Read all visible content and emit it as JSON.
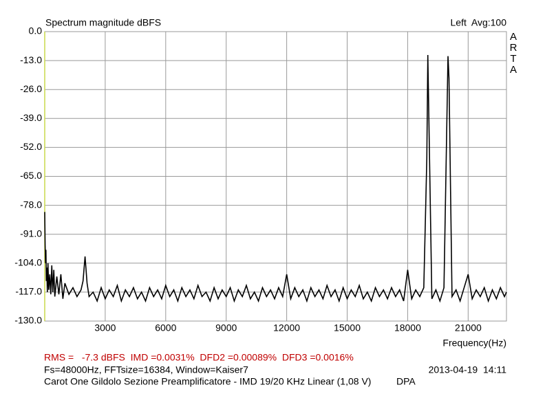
{
  "chart_data": {
    "type": "line",
    "title": "Spectrum magnitude dBFS",
    "channel_label": "Left  Avg:100",
    "brand": "ARTA",
    "x_label": "Frequency(Hz)",
    "measurements": "RMS =   -7.3 dBFS  IMD =0.0031%  DFD2 =0.00089%  DFD3 =0.0016%",
    "settings": "Fs=48000Hz, FFTsize=16384, Window=Kaiser7",
    "timestamp": "2013-04-19  14:11",
    "description": "Carot One Gildolo Sezione Preamplificatore - IMD 19/20 KHz Linear (1,08 V)",
    "author": "DPA",
    "grid": true,
    "xlim": [
      0,
      22900
    ],
    "xticks": [
      3000,
      6000,
      9000,
      12000,
      15000,
      18000,
      21000
    ],
    "ylim": [
      -130,
      0
    ],
    "yticks": [
      {
        "value": 0,
        "label": "0.0"
      },
      {
        "value": -13,
        "label": "-13.0"
      },
      {
        "value": -26,
        "label": "-26.0"
      },
      {
        "value": -39,
        "label": "-39.0"
      },
      {
        "value": -52,
        "label": "-52.0"
      },
      {
        "value": -65,
        "label": "-65.0"
      },
      {
        "value": -78,
        "label": "-78.0"
      },
      {
        "value": -91,
        "label": "-91.0"
      },
      {
        "value": -104,
        "label": "-104.0"
      },
      {
        "value": -117,
        "label": "-117.0"
      },
      {
        "value": -130,
        "label": "-130.0"
      }
    ],
    "x": [
      0,
      20,
      40,
      60,
      80,
      100,
      130,
      160,
      200,
      250,
      300,
      350,
      400,
      450,
      500,
      600,
      700,
      800,
      900,
      1000,
      1200,
      1400,
      1600,
      1800,
      1900,
      2000,
      2100,
      2200,
      2400,
      2600,
      2800,
      3000,
      3200,
      3400,
      3600,
      3800,
      4000,
      4200,
      4400,
      4600,
      4800,
      5000,
      5200,
      5400,
      5600,
      5800,
      6000,
      6200,
      6400,
      6600,
      6800,
      7000,
      7200,
      7400,
      7600,
      7800,
      8000,
      8200,
      8400,
      8600,
      8800,
      9000,
      9200,
      9400,
      9600,
      9800,
      10000,
      10200,
      10400,
      10600,
      10800,
      11000,
      11200,
      11400,
      11600,
      11800,
      12000,
      12200,
      12400,
      12600,
      12800,
      13000,
      13200,
      13400,
      13600,
      13800,
      14000,
      14200,
      14400,
      14600,
      14800,
      15000,
      15200,
      15400,
      15600,
      15800,
      16000,
      16200,
      16400,
      16600,
      16800,
      17000,
      17200,
      17400,
      17600,
      17800,
      18000,
      18200,
      18400,
      18600,
      18800,
      18950,
      19000,
      19200,
      19400,
      19600,
      19800,
      20000,
      20050,
      20200,
      20400,
      20600,
      20800,
      21000,
      21200,
      21400,
      21600,
      21800,
      22000,
      22200,
      22400,
      22600,
      22800,
      22900
    ],
    "series": [
      {
        "color": "#000000",
        "values": [
          -81,
          -96,
          -104,
          -98,
          -112,
          -106,
          -117,
          -104,
          -116,
          -109,
          -118,
          -105,
          -117,
          -107,
          -119,
          -110,
          -118,
          -109,
          -120,
          -113,
          -118,
          -115,
          -119,
          -116,
          -112,
          -101,
          -113,
          -119,
          -117,
          -121,
          -115,
          -120,
          -116,
          -119,
          -114,
          -121,
          -116,
          -119,
          -115,
          -120,
          -117,
          -121,
          -115,
          -119,
          -116,
          -120,
          -114,
          -119,
          -116,
          -121,
          -115,
          -119,
          -116,
          -120,
          -114,
          -119,
          -117,
          -121,
          -115,
          -120,
          -116,
          -119,
          -115,
          -121,
          -116,
          -119,
          -114,
          -120,
          -117,
          -121,
          -115,
          -119,
          -116,
          -120,
          -115,
          -119,
          -109,
          -120,
          -115,
          -119,
          -116,
          -121,
          -115,
          -119,
          -116,
          -120,
          -114,
          -119,
          -116,
          -121,
          -115,
          -120,
          -116,
          -119,
          -114,
          -120,
          -117,
          -121,
          -115,
          -119,
          -116,
          -120,
          -115,
          -119,
          -116,
          -121,
          -107,
          -120,
          -116,
          -119,
          -115,
          -57,
          -10.5,
          -120,
          -116,
          -121,
          -115,
          -11,
          -21,
          -119,
          -116,
          -121,
          -115,
          -109,
          -120,
          -116,
          -119,
          -115,
          -121,
          -116,
          -120,
          -115,
          -119,
          -117
        ]
      }
    ]
  }
}
